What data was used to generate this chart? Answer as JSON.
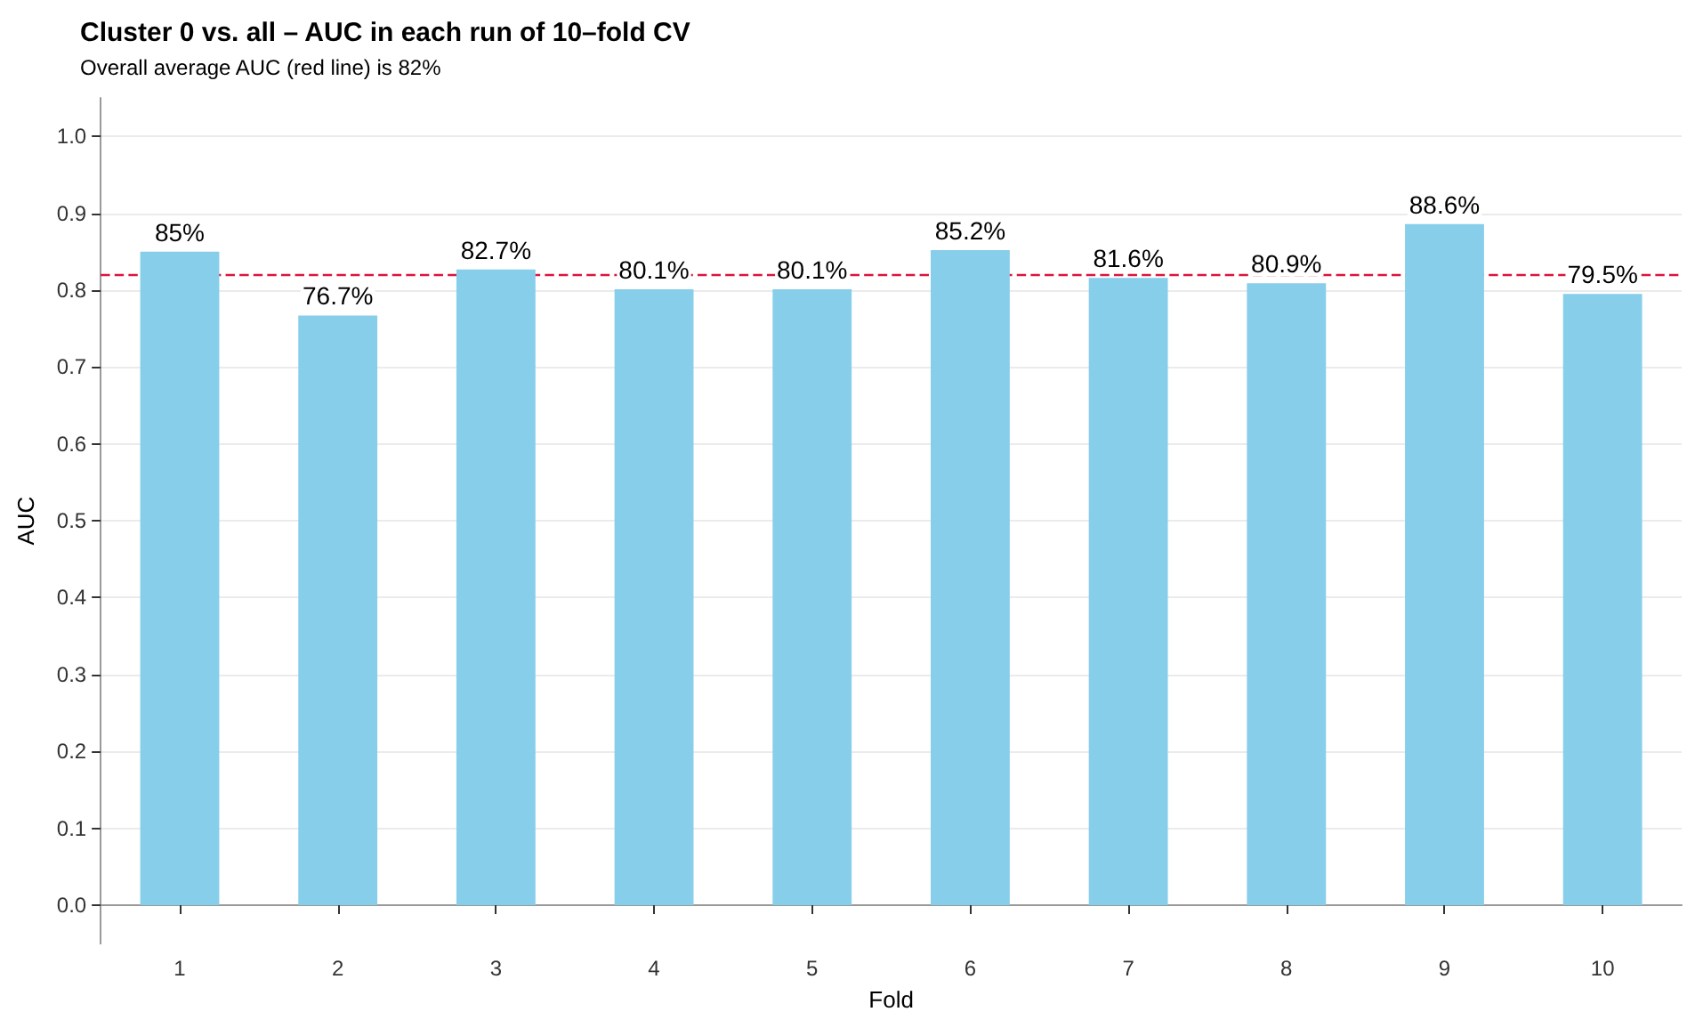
{
  "chart_data": {
    "type": "bar",
    "title": "Cluster 0 vs. all – AUC in each run of 10–fold CV",
    "subtitle": "Overall average AUC (red line) is 82%",
    "xlabel": "Fold",
    "ylabel": "AUC",
    "categories": [
      "1",
      "2",
      "3",
      "4",
      "5",
      "6",
      "7",
      "8",
      "9",
      "10"
    ],
    "values": [
      0.85,
      0.767,
      0.827,
      0.801,
      0.801,
      0.852,
      0.816,
      0.809,
      0.886,
      0.795
    ],
    "value_labels": [
      "85%",
      "76.7%",
      "82.7%",
      "80.1%",
      "80.1%",
      "85.2%",
      "81.6%",
      "80.9%",
      "88.6%",
      "79.5%"
    ],
    "color": "#87ceeb",
    "ylim": [
      -0.05,
      1.05
    ],
    "yticks": [
      {
        "value": 0,
        "label": "0.0"
      },
      {
        "value": 0.1,
        "label": "0.1"
      },
      {
        "value": 0.2,
        "label": "0.2"
      },
      {
        "value": 0.3,
        "label": "0.3"
      },
      {
        "value": 0.4,
        "label": "0.4"
      },
      {
        "value": 0.5,
        "label": "0.5"
      },
      {
        "value": 0.6,
        "label": "0.6"
      },
      {
        "value": 0.7,
        "label": "0.7"
      },
      {
        "value": 0.8,
        "label": "0.8"
      },
      {
        "value": 0.9,
        "label": "0.9"
      },
      {
        "value": 1,
        "label": "1.0"
      }
    ],
    "ref_lines": [
      {
        "axis": "y",
        "value": 0.82,
        "color": "#dc143c",
        "line_style": "dashed"
      }
    ],
    "grid": "y"
  }
}
